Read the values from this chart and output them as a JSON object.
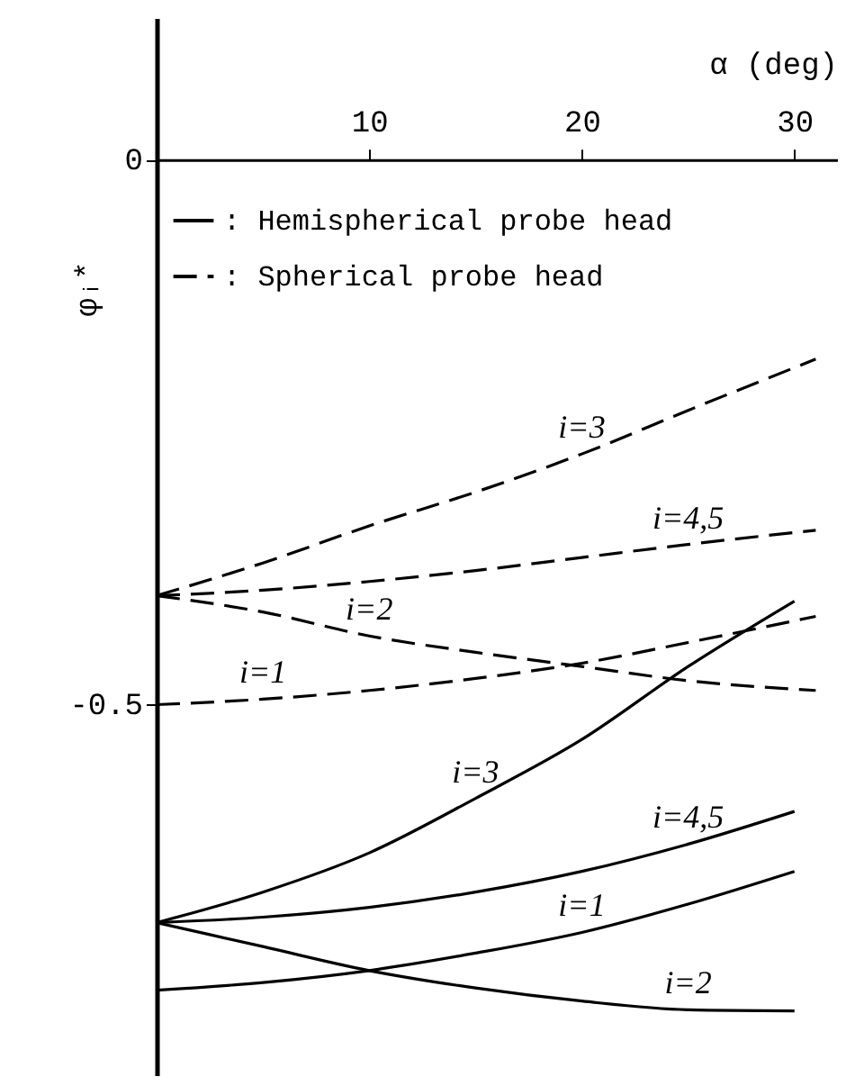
{
  "chart_data": {
    "type": "line",
    "xlabel": "α (deg)",
    "ylabel": "φᵢ*",
    "xlim": [
      0,
      32
    ],
    "ylim": [
      -0.84,
      0.13
    ],
    "xticks": [
      10,
      20,
      30
    ],
    "yticks": [
      0,
      -0.5
    ],
    "legend": "top left",
    "grid": false,
    "series": [
      {
        "name": ": Hemispherical probe head",
        "color": "#000000",
        "line_style": "solid",
        "x": [
          0,
          5,
          10,
          15,
          20,
          25,
          30
        ],
        "values": [
          -0.7,
          -0.672,
          -0.636,
          -0.586,
          -0.532,
          -0.465,
          -0.405
        ]
      },
      {
        "color": "#000000",
        "line_style": "solid",
        "x": [
          0,
          5,
          10,
          15,
          20,
          25,
          30
        ],
        "values": [
          -0.7,
          -0.695,
          -0.686,
          -0.672,
          -0.653,
          -0.628,
          -0.598
        ]
      },
      {
        "color": "#000000",
        "line_style": "solid",
        "x": [
          0,
          5,
          10,
          15,
          20,
          25,
          30
        ],
        "values": [
          -0.762,
          -0.755,
          -0.744,
          -0.728,
          -0.709,
          -0.683,
          -0.653
        ]
      },
      {
        "color": "#000000",
        "line_style": "solid",
        "x": [
          0,
          5,
          10,
          15,
          20,
          25,
          30
        ],
        "values": [
          -0.7,
          -0.722,
          -0.744,
          -0.76,
          -0.772,
          -0.78,
          -0.781
        ]
      },
      {
        "name": ": Spherical probe head",
        "color": "#000000",
        "line_style": "dashed",
        "x": [
          0,
          5,
          10,
          15,
          20,
          25,
          31
        ],
        "values": [
          -0.4,
          -0.37,
          -0.336,
          -0.305,
          -0.27,
          -0.23,
          -0.183
        ]
      },
      {
        "color": "#000000",
        "line_style": "dashed",
        "x": [
          0,
          5,
          10,
          15,
          20,
          25,
          31
        ],
        "values": [
          -0.4,
          -0.395,
          -0.387,
          -0.377,
          -0.365,
          -0.353,
          -0.34
        ]
      },
      {
        "color": "#000000",
        "line_style": "dashed",
        "x": [
          0,
          5,
          10,
          15,
          20,
          25,
          31
        ],
        "values": [
          -0.4,
          -0.415,
          -0.437,
          -0.452,
          -0.465,
          -0.478,
          -0.487
        ]
      },
      {
        "color": "#000000",
        "line_style": "dashed",
        "x": [
          0,
          5,
          10,
          15,
          20,
          25,
          31
        ],
        "values": [
          -0.5,
          -0.495,
          -0.487,
          -0.476,
          -0.462,
          -0.443,
          -0.419
        ]
      }
    ],
    "annotations": [
      {
        "text": "i=3",
        "x": 20,
        "y": -0.27
      },
      {
        "text": "i=4,5",
        "x": 25,
        "y": -0.353
      },
      {
        "text": "i=2",
        "x": 10,
        "y": -0.437
      },
      {
        "text": "i=1",
        "x": 5,
        "y": -0.495
      },
      {
        "text": "i=3",
        "x": 15,
        "y": -0.586
      },
      {
        "text": "i=4,5",
        "x": 25,
        "y": -0.628
      },
      {
        "text": "i=1",
        "x": 20,
        "y": -0.709
      },
      {
        "text": "i=2",
        "x": 25,
        "y": -0.78
      }
    ]
  }
}
